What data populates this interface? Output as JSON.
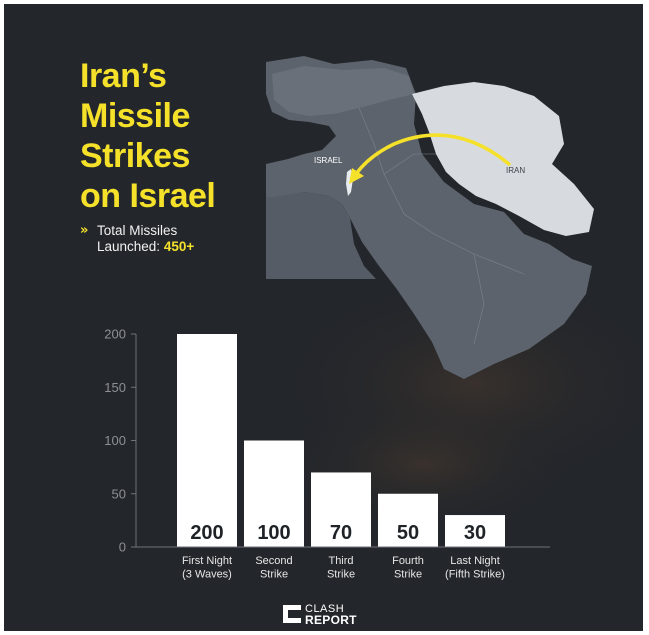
{
  "title_lines": [
    "Iran’s",
    "Missile",
    "Strikes",
    "on Israel"
  ],
  "total": {
    "arrow": "»",
    "label_line1": "Total Missiles",
    "label_line2": "Launched: ",
    "value": "450+"
  },
  "map": {
    "label_israel": "ISRAEL",
    "label_iran": "IRAN",
    "arrow_color": "#f5e12a",
    "iran_color": "#d7dbe0",
    "land_color": "#5d636c"
  },
  "colors": {
    "background": "#23262b",
    "accent": "#f5e12a",
    "bar": "#ffffff"
  },
  "chart_data": {
    "type": "bar",
    "categories": [
      [
        "First Night",
        "(3 Waves)"
      ],
      [
        "Second",
        "Strike"
      ],
      [
        "Third",
        "Strike"
      ],
      [
        "Fourth",
        "Strike"
      ],
      [
        "Last Night",
        "(Fifth Strike)"
      ]
    ],
    "values": [
      200,
      100,
      70,
      50,
      30
    ],
    "data_labels": [
      "200",
      "100",
      "70",
      "50",
      "30"
    ],
    "yticks": [
      0,
      50,
      100,
      150,
      200
    ],
    "ylim": [
      0,
      200
    ],
    "title": "",
    "xlabel": "",
    "ylabel": "",
    "grid": false,
    "legend": "none"
  },
  "logo": {
    "word1": "CLASH",
    "word2": "REPORT"
  }
}
